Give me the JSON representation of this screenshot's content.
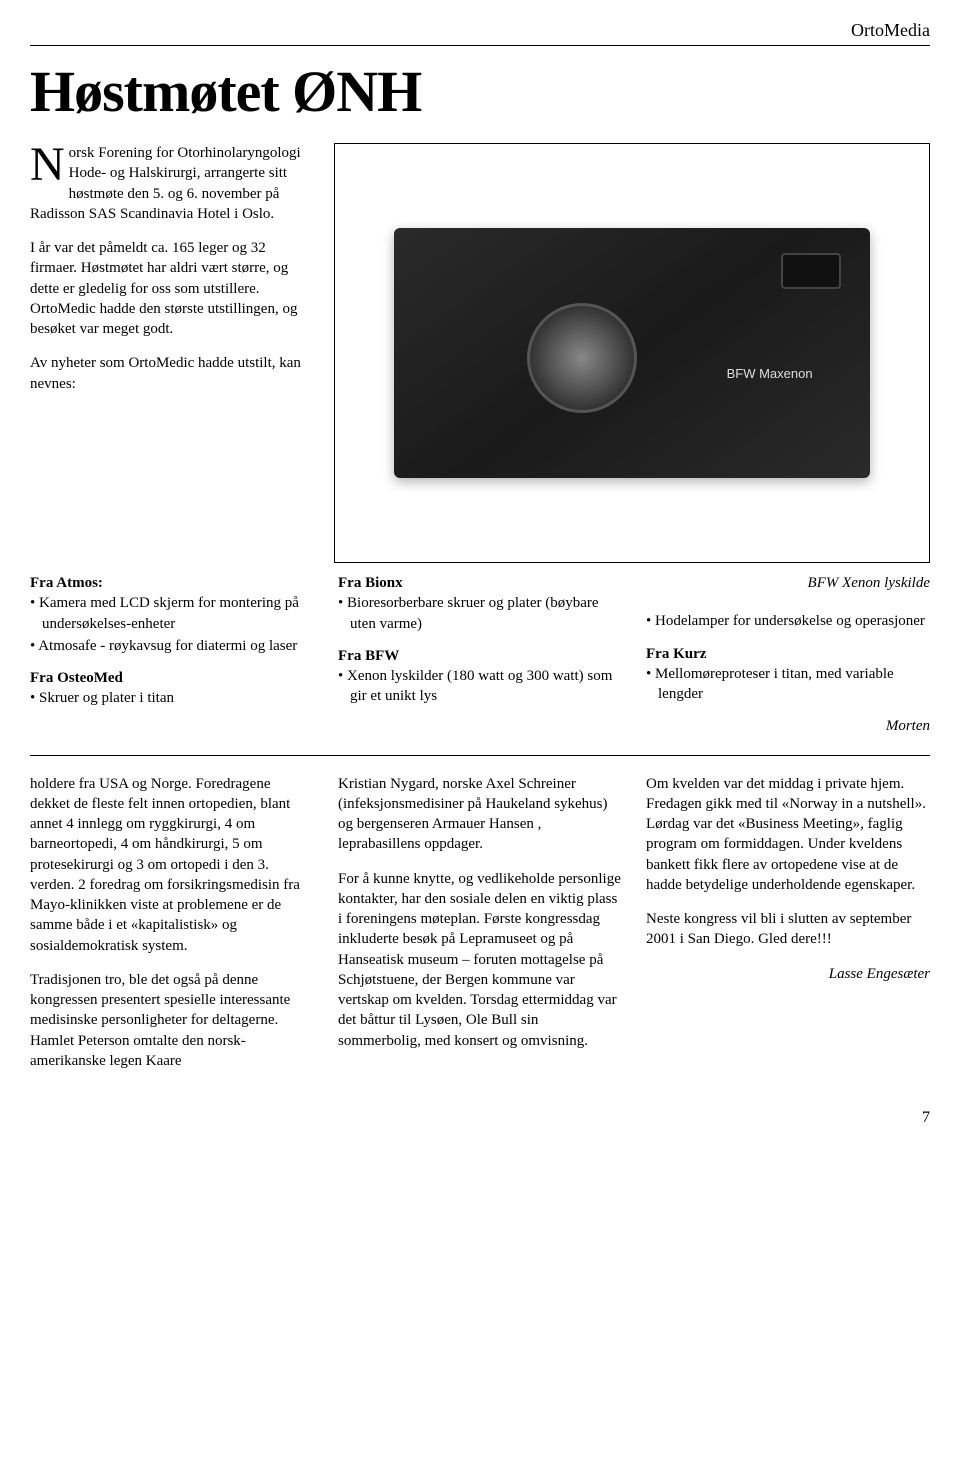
{
  "brand": "OrtoMedia",
  "title": "Høstmøtet ØNH",
  "intro": {
    "p1_dropcap": "N",
    "p1": "orsk Forening for Otorhinolaryngologi Hode- og Halskirurgi, arrangerte sitt høstmøte den 5. og 6. november på Radisson SAS Scandinavia Hotel i Oslo.",
    "p2": "I år var det påmeldt ca. 165 leger og 32 firmaer. Høstmøtet har aldri vært større, og dette er gledelig for oss som utstillere. OrtoMedic hadde den største utstillingen, og besøket var meget godt.",
    "p3": "Av nyheter som OrtoMedic hadde utstilt, kan nevnes:"
  },
  "image": {
    "caption": "BFW Xenon lyskilde",
    "device_text": "BFW Maxenon"
  },
  "mid": {
    "col1": {
      "h1": "Fra Atmos:",
      "b1": "Kamera med LCD skjerm for montering på undersøkelses-enheter",
      "b2": "Atmosafe - røykavsug for diatermi og laser",
      "h2": "Fra OsteoMed",
      "b3": "Skruer og plater i titan"
    },
    "col2": {
      "h1": "Fra Bionx",
      "b1": "Bioresorberbare skruer og plater (bøybare uten varme)",
      "h2": "Fra BFW",
      "b2": "Xenon lyskilder (180 watt og 300 watt) som gir et unikt lys"
    },
    "col3": {
      "b1": "Hodelamper for undersøkelse og operasjoner",
      "h1": "Fra Kurz",
      "b2": "Mellomøreproteser i titan, med variable lengder",
      "byline": "Morten"
    }
  },
  "lower": {
    "col1": {
      "p1": "holdere fra USA og Norge. Foredragene dekket de fleste felt innen ortopedien, blant annet 4 innlegg om ryggkirurgi, 4 om barneortopedi, 4 om håndkirurgi, 5 om protesekirurgi og 3 om ortopedi i den 3. verden. 2 foredrag om forsikringsmedisin fra Mayo-klinikken viste at problemene er de samme både i et «kapitalistisk» og sosialdemokratisk system.",
      "p2": "Tradisjonen tro, ble det også på denne kongressen presentert spesielle interessante medisinske personligheter for deltagerne. Hamlet Peterson omtalte den norsk-amerikanske legen Kaare"
    },
    "col2": {
      "p1": "Kristian Nygard, norske Axel Schreiner (infeksjonsmedisiner på Haukeland sykehus) og bergenseren Armauer Hansen , leprabasillens oppdager.",
      "p2": "For å kunne knytte, og vedlikeholde personlige kontakter, har den sosiale delen en viktig plass i foreningens møteplan. Første kongressdag inkluderte besøk på Lepramuseet og på Hanseatisk museum – foruten mottagelse på Schjøtstuene, der Bergen kommune var vertskap om kvelden. Torsdag ettermiddag var det båttur til Lysøen, Ole Bull sin sommerbolig, med konsert og omvisning."
    },
    "col3": {
      "p1": "Om kvelden var det middag i private hjem. Fredagen gikk med til «Norway in a nutshell». Lørdag var det «Business Meeting», faglig program om formiddagen. Under kveldens bankett fikk flere av ortopedene vise at de hadde betydelige underholdende egenskaper.",
      "p2": "Neste kongress vil bli i slutten av september 2001 i San Diego. Gled dere!!!",
      "byline": "Lasse Engesæter"
    }
  },
  "page_number": "7",
  "colors": {
    "text": "#000000",
    "background": "#ffffff",
    "rule": "#000000"
  },
  "typography": {
    "title_fontsize_pt": 44,
    "body_fontsize_pt": 11,
    "font_family": "Palatino / Book Antiqua serif"
  }
}
